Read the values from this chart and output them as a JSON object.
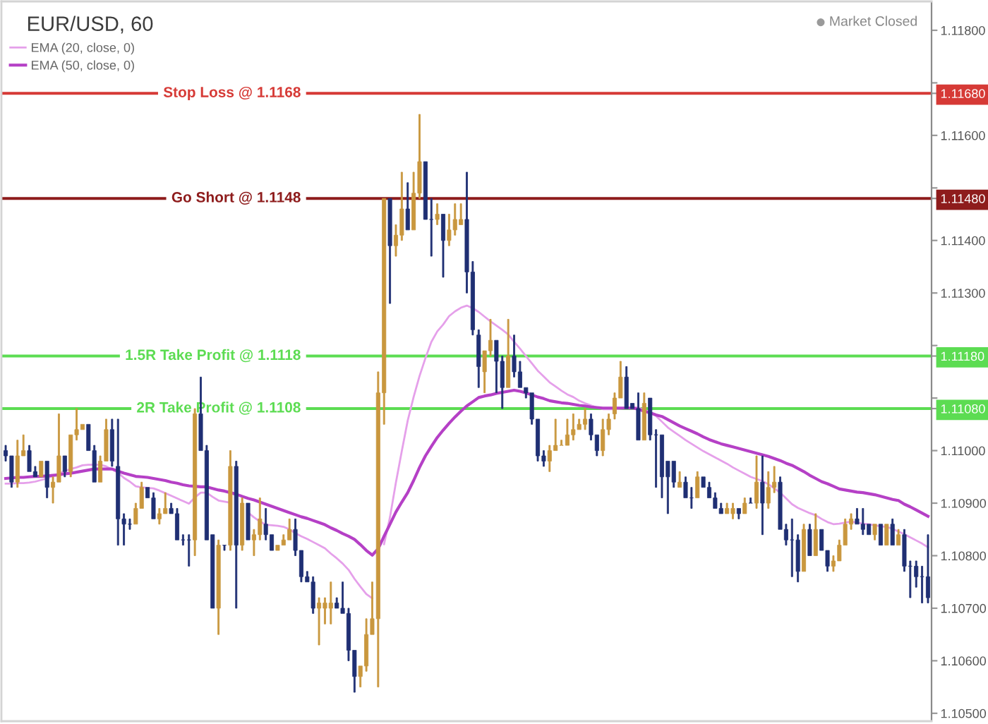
{
  "chart_data": {
    "type": "candlestick",
    "title": "EUR/USD, 60",
    "categories": [
      null,
      null,
      null,
      null,
      null,
      null,
      null,
      null,
      null,
      null,
      null,
      null,
      null,
      null,
      null,
      null,
      null,
      null,
      null,
      null,
      null,
      null,
      null,
      null,
      null,
      null,
      null,
      null,
      null,
      null,
      null,
      null,
      null,
      null,
      null,
      null,
      null,
      null,
      null,
      null,
      null,
      null,
      null,
      null,
      null,
      null,
      null,
      null,
      null,
      null,
      null,
      null,
      null,
      null,
      null,
      null,
      null,
      null,
      null,
      null,
      null,
      null,
      null,
      null,
      null,
      null,
      null,
      null,
      null,
      null,
      null,
      null,
      null,
      null,
      null,
      null,
      null,
      null,
      null,
      null,
      null,
      null,
      null,
      null,
      null,
      null,
      null,
      null,
      null,
      null,
      null,
      null,
      null,
      null,
      null,
      null,
      null,
      null,
      null,
      null,
      null,
      null,
      null,
      null,
      null,
      null,
      null,
      null,
      null,
      null,
      null,
      null,
      null,
      null,
      null,
      null,
      null,
      null,
      null,
      null,
      null,
      null,
      null,
      null,
      null,
      null,
      null,
      null,
      null,
      null,
      null,
      null,
      null,
      null,
      null,
      null,
      null,
      null,
      null,
      null,
      null,
      null,
      null,
      null,
      null,
      null,
      null,
      null,
      null,
      null,
      null,
      null,
      null,
      null,
      null,
      null,
      null
    ],
    "ohlc": [
      [
        1.11,
        1.1101,
        1.1098,
        1.1099
      ],
      [
        1.1099,
        1.1099,
        1.1093,
        1.1094
      ],
      [
        1.1094,
        1.1102,
        1.1093,
        1.1099
      ],
      [
        1.1099,
        1.1103,
        1.1099,
        1.11
      ],
      [
        1.11,
        1.1101,
        1.1096,
        1.1096
      ],
      [
        1.1096,
        1.1097,
        1.1095,
        1.1095
      ],
      [
        1.1095,
        1.1098,
        1.1095,
        1.1098
      ],
      [
        1.1098,
        1.1098,
        1.1091,
        1.1093
      ],
      [
        1.1093,
        1.1095,
        1.109,
        1.1094
      ],
      [
        1.1094,
        1.1107,
        1.1094,
        1.1099
      ],
      [
        1.1099,
        1.1099,
        1.1095,
        1.1096
      ],
      [
        1.1096,
        1.1103,
        1.1095,
        1.1103
      ],
      [
        1.1103,
        1.1108,
        1.1102,
        1.1104
      ],
      [
        1.1104,
        1.1105,
        1.1104,
        1.1105
      ],
      [
        1.1105,
        1.1105,
        1.11,
        1.11
      ],
      [
        1.11,
        1.1101,
        1.1094,
        1.1094
      ],
      [
        1.1094,
        1.1099,
        1.1094,
        1.1098
      ],
      [
        1.1098,
        1.1106,
        1.1098,
        1.1104
      ],
      [
        1.1104,
        1.1106,
        1.1097,
        1.1098
      ],
      [
        1.1097,
        1.1106,
        1.1082,
        1.1087
      ],
      [
        1.1087,
        1.1088,
        1.1082,
        1.1086
      ],
      [
        1.1086,
        1.1087,
        1.1085,
        1.1086
      ],
      [
        1.1086,
        1.109,
        1.1086,
        1.1089
      ],
      [
        1.1089,
        1.1094,
        1.1089,
        1.1093
      ],
      [
        1.1093,
        1.1093,
        1.1091,
        1.1091
      ],
      [
        1.1091,
        1.1092,
        1.1087,
        1.1087
      ],
      [
        1.1087,
        1.1089,
        1.1086,
        1.1088
      ],
      [
        1.1088,
        1.1092,
        1.1088,
        1.1089
      ],
      [
        1.1089,
        1.109,
        1.1088,
        1.1088
      ],
      [
        1.1088,
        1.1089,
        1.1083,
        1.1083
      ],
      [
        1.1083,
        1.1084,
        1.1082,
        1.1083
      ],
      [
        1.1083,
        1.1084,
        1.1078,
        1.1083
      ],
      [
        1.1083,
        1.1108,
        1.108,
        1.1107
      ],
      [
        1.1107,
        1.1114,
        1.11,
        1.11
      ],
      [
        1.11,
        1.1101,
        1.1083,
        1.1083
      ],
      [
        1.1084,
        1.1084,
        1.107,
        1.107
      ],
      [
        1.107,
        1.1083,
        1.1065,
        1.1082
      ],
      [
        1.1082,
        1.1082,
        1.1081,
        1.1082
      ],
      [
        1.1082,
        1.11,
        1.1081,
        1.1097
      ],
      [
        1.1097,
        1.1098,
        1.107,
        1.1082
      ],
      [
        1.1082,
        1.1091,
        1.1081,
        1.109
      ],
      [
        1.109,
        1.109,
        1.1083,
        1.1083
      ],
      [
        1.1083,
        1.1085,
        1.108,
        1.1084
      ],
      [
        1.1084,
        1.1091,
        1.1083,
        1.1087
      ],
      [
        1.1086,
        1.1089,
        1.1083,
        1.1084
      ],
      [
        1.1084,
        1.1084,
        1.1081,
        1.1081
      ],
      [
        1.1081,
        1.1082,
        1.1081,
        1.1082
      ],
      [
        1.1082,
        1.1084,
        1.1082,
        1.1083
      ],
      [
        1.1083,
        1.1087,
        1.1083,
        1.1085
      ],
      [
        1.1085,
        1.1087,
        1.108,
        1.1081
      ],
      [
        1.1081,
        1.1081,
        1.1075,
        1.1076
      ],
      [
        1.1076,
        1.1077,
        1.1075,
        1.1075
      ],
      [
        1.1075,
        1.1076,
        1.1069,
        1.107
      ],
      [
        1.107,
        1.1072,
        1.1063,
        1.1071
      ],
      [
        1.107,
        1.1072,
        1.1067,
        1.1071
      ],
      [
        1.107,
        1.1075,
        1.1067,
        1.1071
      ],
      [
        1.1071,
        1.1072,
        1.107,
        1.107
      ],
      [
        1.107,
        1.1075,
        1.1069,
        1.1069
      ],
      [
        1.1069,
        1.107,
        1.106,
        1.1062
      ],
      [
        1.1062,
        1.1062,
        1.1054,
        1.1057
      ],
      [
        1.1057,
        1.1059,
        1.1055,
        1.1059
      ],
      [
        1.1059,
        1.1068,
        1.1058,
        1.1065
      ],
      [
        1.1065,
        1.1075,
        1.1065,
        1.1068
      ],
      [
        1.1068,
        1.1115,
        1.1055,
        1.1111
      ],
      [
        1.1111,
        1.1148,
        1.1105,
        1.1148
      ],
      [
        1.1148,
        1.1148,
        1.1128,
        1.1139
      ],
      [
        1.1139,
        1.1143,
        1.1137,
        1.1141
      ],
      [
        1.1141,
        1.1153,
        1.114,
        1.1146
      ],
      [
        1.1146,
        1.1151,
        1.1142,
        1.1142
      ],
      [
        1.1142,
        1.1153,
        1.1142,
        1.1149
      ],
      [
        1.1149,
        1.1164,
        1.1148,
        1.1155
      ],
      [
        1.1155,
        1.1155,
        1.1144,
        1.1144
      ],
      [
        1.1144,
        1.1148,
        1.1137,
        1.1144
      ],
      [
        1.1144,
        1.1147,
        1.1143,
        1.1145
      ],
      [
        1.1145,
        1.1145,
        1.1133,
        1.114
      ],
      [
        1.114,
        1.1145,
        1.1139,
        1.1142
      ],
      [
        1.1142,
        1.1147,
        1.1141,
        1.1144
      ],
      [
        1.1143,
        1.1147,
        1.1143,
        1.1144
      ],
      [
        1.1144,
        1.1153,
        1.113,
        1.1134
      ],
      [
        1.1134,
        1.1136,
        1.1122,
        1.1123
      ],
      [
        1.1122,
        1.1123,
        1.1112,
        1.1116
      ],
      [
        1.1115,
        1.1119,
        1.1111,
        1.1119
      ],
      [
        1.1119,
        1.1125,
        1.1118,
        1.1121
      ],
      [
        1.1121,
        1.1121,
        1.1111,
        1.1117
      ],
      [
        1.1117,
        1.1118,
        1.1108,
        1.1112
      ],
      [
        1.1112,
        1.1125,
        1.1112,
        1.1118
      ],
      [
        1.1118,
        1.1122,
        1.1114,
        1.1115
      ],
      [
        1.1115,
        1.1117,
        1.1112,
        1.1112
      ],
      [
        1.1112,
        1.1112,
        1.111,
        1.1111
      ],
      [
        1.1111,
        1.1111,
        1.1105,
        1.1106
      ],
      [
        1.1106,
        1.1106,
        1.1098,
        1.1099
      ],
      [
        1.1099,
        1.11,
        1.1097,
        1.1098
      ],
      [
        1.1098,
        1.1101,
        1.1096,
        1.11
      ],
      [
        1.11,
        1.1106,
        1.11,
        1.1101
      ],
      [
        1.1101,
        1.1102,
        1.1101,
        1.1101
      ],
      [
        1.1101,
        1.1106,
        1.1101,
        1.1103
      ],
      [
        1.1103,
        1.1107,
        1.1102,
        1.1104
      ],
      [
        1.1104,
        1.1106,
        1.1104,
        1.1105
      ],
      [
        1.1105,
        1.1108,
        1.1104,
        1.1106
      ],
      [
        1.1106,
        1.1107,
        1.1102,
        1.1103
      ],
      [
        1.1103,
        1.1103,
        1.1099,
        1.11
      ],
      [
        1.11,
        1.1106,
        1.1099,
        1.1104
      ],
      [
        1.1104,
        1.1107,
        1.1103,
        1.1106
      ],
      [
        1.1107,
        1.1111,
        1.1106,
        1.111
      ],
      [
        1.111,
        1.1117,
        1.111,
        1.1114
      ],
      [
        1.1114,
        1.1116,
        1.1108,
        1.1108
      ],
      [
        1.1109,
        1.1109,
        1.1108,
        1.1108
      ],
      [
        1.1108,
        1.1111,
        1.1102,
        1.1102
      ],
      [
        1.1102,
        1.1111,
        1.1102,
        1.1109
      ],
      [
        1.111,
        1.111,
        1.1102,
        1.1103
      ],
      [
        1.1103,
        1.1104,
        1.1093,
        1.1103
      ],
      [
        1.1103,
        1.1103,
        1.1091,
        1.1095
      ],
      [
        1.1098,
        1.1098,
        1.1088,
        1.1095
      ],
      [
        1.1098,
        1.1098,
        1.1093,
        1.1094
      ],
      [
        1.1093,
        1.1096,
        1.1093,
        1.1094
      ],
      [
        1.1094,
        1.1095,
        1.1091,
        1.1091
      ],
      [
        1.1091,
        1.1093,
        1.1089,
        1.1091
      ],
      [
        1.1091,
        1.1096,
        1.1091,
        1.1095
      ],
      [
        1.1095,
        1.1095,
        1.1093,
        1.1093
      ],
      [
        1.1093,
        1.1094,
        1.1091,
        1.1091
      ],
      [
        1.1091,
        1.1092,
        1.1089,
        1.1089
      ],
      [
        1.1089,
        1.109,
        1.1088,
        1.1088
      ],
      [
        1.1088,
        1.109,
        1.1088,
        1.1089
      ],
      [
        1.1088,
        1.109,
        1.1087,
        1.1089
      ],
      [
        1.1089,
        1.1089,
        1.1087,
        1.1088
      ],
      [
        1.1088,
        1.1091,
        1.1088,
        1.109
      ],
      [
        1.109,
        1.1091,
        1.109,
        1.109
      ],
      [
        1.109,
        1.1099,
        1.1089,
        1.1094
      ],
      [
        1.1094,
        1.1099,
        1.1084,
        1.109
      ],
      [
        1.109,
        1.1096,
        1.1089,
        1.1093
      ],
      [
        1.1093,
        1.1097,
        1.1092,
        1.1094
      ],
      [
        1.1094,
        1.1095,
        1.1085,
        1.1085
      ],
      [
        1.1085,
        1.1086,
        1.1082,
        1.1083
      ],
      [
        1.1083,
        1.1087,
        1.1076,
        1.1083
      ],
      [
        1.1083,
        1.1084,
        1.1075,
        1.1077
      ],
      [
        1.1077,
        1.1086,
        1.1077,
        1.1085
      ],
      [
        1.1085,
        1.1086,
        1.108,
        1.108
      ],
      [
        1.108,
        1.1088,
        1.108,
        1.1085
      ],
      [
        1.1085,
        1.1085,
        1.1081,
        1.1081
      ],
      [
        1.1081,
        1.1081,
        1.1077,
        1.1078
      ],
      [
        1.1078,
        1.108,
        1.1077,
        1.1079
      ],
      [
        1.1079,
        1.1083,
        1.1079,
        1.1082
      ],
      [
        1.1082,
        1.1087,
        1.1082,
        1.1086
      ],
      [
        1.1086,
        1.1088,
        1.1085,
        1.1087
      ],
      [
        1.1087,
        1.1089,
        1.1086,
        1.1086
      ],
      [
        1.1086,
        1.1089,
        1.1084,
        1.1085
      ],
      [
        1.1086,
        1.1086,
        1.1084,
        1.1084
      ],
      [
        1.1084,
        1.1086,
        1.1083,
        1.1086
      ],
      [
        1.1086,
        1.1086,
        1.1082,
        1.1082
      ],
      [
        1.1082,
        1.1086,
        1.1082,
        1.1086
      ],
      [
        1.1086,
        1.1087,
        1.1082,
        1.1082
      ],
      [
        1.1082,
        1.1085,
        1.1082,
        1.1084
      ],
      [
        1.1084,
        1.1085,
        1.1077,
        1.1078
      ],
      [
        1.1078,
        1.1079,
        1.1072,
        1.1078
      ],
      [
        1.1078,
        1.1079,
        1.1074,
        1.1076
      ],
      [
        1.1076,
        1.1078,
        1.1071,
        1.1076
      ],
      [
        1.1076,
        1.1084,
        1.1071,
        1.1072
      ]
    ],
    "colors": [
      "#1f2f73",
      "#1f2f73",
      "#c9973e",
      "#c9973e",
      "#1f2f73",
      "#1f2f73",
      "#c9973e",
      "#1f2f73",
      "#c9973e",
      "#c9973e",
      "#1f2f73",
      "#c9973e",
      "#c9973e",
      "#c9973e",
      "#1f2f73",
      "#1f2f73",
      "#c9973e",
      "#c9973e",
      "#1f2f73",
      "#1f2f73",
      "#1f2f73",
      "#1f2f73",
      "#c9973e",
      "#c9973e",
      "#1f2f73",
      "#1f2f73",
      "#c9973e",
      "#c9973e",
      "#1f2f73",
      "#1f2f73",
      "#1f2f73",
      "#1f2f73",
      "#c9973e",
      "#1f2f73",
      "#1f2f73",
      "#1f2f73",
      "#c9973e",
      "#1f2f73",
      "#c9973e",
      "#1f2f73",
      "#c9973e",
      "#1f2f73",
      "#c9973e",
      "#c9973e",
      "#1f2f73",
      "#1f2f73",
      "#c9973e",
      "#c9973e",
      "#c9973e",
      "#1f2f73",
      "#1f2f73",
      "#1f2f73",
      "#1f2f73",
      "#c9973e",
      "#c9973e",
      "#c9973e",
      "#1f2f73",
      "#1f2f73",
      "#1f2f73",
      "#1f2f73",
      "#c9973e",
      "#c9973e",
      "#c9973e",
      "#c9973e",
      "#c9973e",
      "#1f2f73",
      "#c9973e",
      "#c9973e",
      "#1f2f73",
      "#c9973e",
      "#c9973e",
      "#1f2f73",
      "#1f2f73",
      "#c9973e",
      "#1f2f73",
      "#c9973e",
      "#c9973e",
      "#c9973e",
      "#1f2f73",
      "#1f2f73",
      "#1f2f73",
      "#c9973e",
      "#c9973e",
      "#1f2f73",
      "#1f2f73",
      "#c9973e",
      "#1f2f73",
      "#1f2f73",
      "#1f2f73",
      "#1f2f73",
      "#1f2f73",
      "#1f2f73",
      "#c9973e",
      "#c9973e",
      "#c9973e",
      "#c9973e",
      "#c9973e",
      "#c9973e",
      "#c9973e",
      "#1f2f73",
      "#1f2f73",
      "#c9973e",
      "#c9973e",
      "#c9973e",
      "#c9973e",
      "#1f2f73",
      "#1f2f73",
      "#1f2f73",
      "#c9973e",
      "#1f2f73",
      "#1f2f73",
      "#1f2f73",
      "#1f2f73",
      "#1f2f73",
      "#c9973e",
      "#1f2f73",
      "#1f2f73",
      "#c9973e",
      "#1f2f73",
      "#1f2f73",
      "#1f2f73",
      "#1f2f73",
      "#c9973e",
      "#c9973e",
      "#1f2f73",
      "#c9973e",
      "#1f2f73",
      "#c9973e",
      "#1f2f73",
      "#c9973e",
      "#c9973e",
      "#1f2f73",
      "#1f2f73",
      "#1f2f73",
      "#1f2f73",
      "#c9973e",
      "#1f2f73",
      "#c9973e",
      "#1f2f73",
      "#1f2f73",
      "#c9973e",
      "#c9973e",
      "#c9973e",
      "#c9973e",
      "#1f2f73",
      "#1f2f73",
      "#1f2f73",
      "#c9973e",
      "#1f2f73",
      "#c9973e",
      "#1f2f73",
      "#c9973e",
      "#1f2f73",
      "#1f2f73",
      "#1f2f73",
      "#1f2f73",
      "#1f2f73"
    ],
    "series": [
      {
        "type": "line",
        "name": "EMA (20, close, 0)",
        "color": "#e5a0ea",
        "values": [
          1.10937,
          1.10937,
          1.10938,
          1.10938,
          1.10939,
          1.10941,
          1.10944,
          1.10947,
          1.10952,
          1.10956,
          1.10961,
          1.10965,
          1.10968,
          1.10972,
          1.10973,
          1.10973,
          1.10973,
          1.1097,
          1.10964,
          1.10958,
          1.10948,
          1.10941,
          1.10932,
          1.1093,
          1.10929,
          1.10928,
          1.10924,
          1.10919,
          1.10914,
          1.10909,
          1.10904,
          1.10899,
          1.10911,
          1.1092,
          1.1092,
          1.10912,
          1.10905,
          1.10903,
          1.10901,
          null,
          null,
          1.10882,
          1.10873,
          1.10865,
          1.10859,
          1.10858,
          1.10857,
          1.10855,
          1.1085,
          1.10843,
          1.10837,
          1.10832,
          1.10826,
          1.1082,
          1.10814,
          1.10804,
          1.10795,
          1.10785,
          1.10773,
          1.10756,
          1.10741,
          1.10727,
          1.10719,
          null,
          1.10822,
          1.10873,
          1.10939,
          1.10999,
          1.11057,
          1.11102,
          1.11142,
          1.11176,
          1.11207,
          1.11227,
          1.1124,
          1.11256,
          1.11265,
          1.11272,
          1.11276,
          1.11271,
          1.11264,
          1.11255,
          1.11246,
          1.11238,
          1.1123,
          1.11221,
          1.11207,
          1.11194,
          1.1118,
          1.11166,
          1.11152,
          1.11141,
          1.1113,
          1.11122,
          1.11114,
          1.11107,
          1.11102,
          1.11095,
          1.1109,
          1.11086,
          1.11082,
          1.11079,
          1.11079,
          1.11079,
          1.1108,
          1.11081,
          1.11083,
          1.11082,
          1.11077,
          1.11073,
          1.11066,
          1.11055,
          1.11044,
          1.11036,
          1.11028,
          1.1102,
          1.11013,
          1.11006,
          1.10999,
          1.10993,
          1.10987,
          1.10981,
          1.10975,
          1.10968,
          1.10962,
          1.10956,
          1.1095,
          1.10946,
          1.10942,
          1.10936,
          1.10928,
          1.1092,
          1.10909,
          1.10898,
          1.10891,
          1.10886,
          1.10881,
          1.10877,
          1.1087,
          1.10864,
          1.1086,
          1.10861,
          1.10863,
          1.10865,
          1.10863,
          1.10861,
          1.1086,
          1.10858,
          1.10856,
          1.10855,
          1.10851,
          1.10846,
          1.10841,
          1.10835,
          1.10829,
          1.10823,
          1.10816
        ]
      },
      {
        "type": "line",
        "name": "EMA (50, close, 0)",
        "color": "#b540c6",
        "values": [
          1.10947,
          1.10948,
          1.10949,
          1.10949,
          1.1095,
          1.10951,
          1.10951,
          1.10952,
          1.10953,
          1.10954,
          1.10956,
          1.10957,
          1.10959,
          1.10961,
          1.10963,
          1.10965,
          1.10965,
          1.10965,
          1.10965,
          1.10961,
          1.10957,
          1.10954,
          1.10951,
          1.1095,
          1.10949,
          1.10947,
          1.10945,
          1.10943,
          1.1094,
          1.10938,
          1.10935,
          1.10933,
          1.10932,
          1.10931,
          1.10931,
          1.10928,
          1.10925,
          1.10923,
          1.1092,
          1.10917,
          1.10913,
          1.10909,
          1.10906,
          1.10902,
          1.10898,
          1.10894,
          1.1089,
          1.10886,
          1.10882,
          1.10878,
          1.10874,
          1.10871,
          1.10867,
          1.10863,
          1.10859,
          1.10853,
          1.10848,
          1.10842,
          1.10837,
          1.10831,
          1.10821,
          1.1081,
          1.10801,
          1.10813,
          1.10837,
          1.1086,
          1.10883,
          1.10902,
          1.1092,
          1.10943,
          1.10968,
          1.1099,
          1.11008,
          1.11025,
          1.11039,
          1.11052,
          1.11064,
          1.11075,
          1.11085,
          1.11093,
          1.11101,
          1.11104,
          1.11106,
          1.11109,
          1.11111,
          1.11113,
          1.11115,
          1.11113,
          1.1111,
          1.11106,
          1.11102,
          1.11099,
          1.11095,
          1.11093,
          1.11091,
          1.1109,
          1.11088,
          1.11086,
          1.11085,
          1.11083,
          1.11082,
          1.11081,
          1.11081,
          1.11081,
          1.11081,
          1.11081,
          1.11081,
          1.11079,
          1.11075,
          1.11072,
          1.11068,
          1.11065,
          1.11059,
          1.11053,
          1.11047,
          1.11042,
          1.11037,
          1.11032,
          1.11026,
          1.11021,
          1.11017,
          1.11013,
          1.1101,
          1.11007,
          1.11004,
          1.11001,
          1.10998,
          1.10995,
          1.10992,
          1.10989,
          1.10985,
          1.10981,
          1.10976,
          1.10972,
          1.10966,
          1.1096,
          1.10953,
          1.10947,
          1.10941,
          1.10937,
          1.10932,
          1.10927,
          1.10925,
          1.10923,
          1.10921,
          1.1092,
          1.10918,
          1.10916,
          1.10913,
          1.1091,
          1.10907,
          1.10905,
          1.10898,
          1.10893,
          1.10887,
          1.10881,
          1.10875
        ]
      }
    ],
    "ylim": [
      1.10485,
      1.11855
    ],
    "yticks": [
      {
        "value": 1.118,
        "label": "1.11800"
      },
      {
        "value": 1.117,
        "label": null
      },
      {
        "value": 1.1168,
        "label": "1.11680"
      },
      {
        "value": 1.116,
        "label": "1.11600"
      },
      {
        "value": 1.115,
        "label": null
      },
      {
        "value": 1.1148,
        "label": "1.11480"
      },
      {
        "value": 1.114,
        "label": "1.11400"
      },
      {
        "value": 1.113,
        "label": "1.11300"
      },
      {
        "value": 1.112,
        "label": null
      },
      {
        "value": 1.1118,
        "label": "1.11180"
      },
      {
        "value": 1.111,
        "label": null
      },
      {
        "value": 1.1108,
        "label": "1.11080"
      },
      {
        "value": 1.11,
        "label": "1.11000"
      },
      {
        "value": 1.109,
        "label": "1.10900"
      },
      {
        "value": 1.108,
        "label": "1.10800"
      },
      {
        "value": 1.107,
        "label": "1.10700"
      },
      {
        "value": 1.106,
        "label": "1.10600"
      },
      {
        "value": 1.105,
        "label": "1.10500"
      }
    ],
    "ref_lines": [
      {
        "axis": "y",
        "value": 1.1168,
        "label": "Stop Loss @ 1.1168",
        "color": "#d63a36"
      },
      {
        "axis": "y",
        "value": 1.1148,
        "label": "Go Short @ 1.1148",
        "color": "#8e1c1c"
      },
      {
        "axis": "y",
        "value": 1.1118,
        "label": "1.5R Take Profit @ 1.1118",
        "color": "#5cdc52"
      },
      {
        "axis": "y",
        "value": 1.1108,
        "label": "2R Take Profit @ 1.1108",
        "color": "#5cdc52"
      }
    ],
    "annotations": [
      "Market Closed"
    ],
    "legend": "top left",
    "tick_labels": "y"
  }
}
